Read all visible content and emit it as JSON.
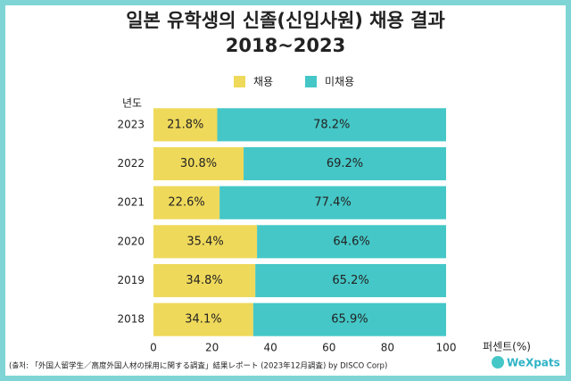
{
  "chart_data": {
    "type": "stacked-barh",
    "title": "일본 유학생의 신졸(신입사원) 채용 결과",
    "subtitle": "2018~2023",
    "y_label": "년도",
    "x_label": "퍼센트(%)",
    "categories": [
      "2023",
      "2022",
      "2021",
      "2020",
      "2019",
      "2018"
    ],
    "series": [
      {
        "name": "채용",
        "color": "#efd95b",
        "values": [
          21.8,
          30.8,
          22.6,
          35.4,
          34.8,
          34.1
        ],
        "value_labels": [
          "21.8%",
          "30.8%",
          "22.6%",
          "35.4%",
          "34.8%",
          "34.1%"
        ]
      },
      {
        "name": "미채용",
        "color": "#45c7c7",
        "values": [
          78.2,
          69.2,
          77.4,
          64.6,
          65.2,
          65.9
        ],
        "value_labels": [
          "78.2%",
          "69.2%",
          "77.4%",
          "64.6%",
          "65.2%",
          "65.9%"
        ]
      }
    ],
    "xlim": [
      0,
      100
    ],
    "xticks": [
      0,
      20,
      40,
      60,
      80,
      100
    ],
    "source": "(출처: 「外国人留学生／高度外国人材の採用に関する調査」結果レポート (2023年12月調査)  by DISCO Corp)",
    "logo": "WeXpats"
  }
}
